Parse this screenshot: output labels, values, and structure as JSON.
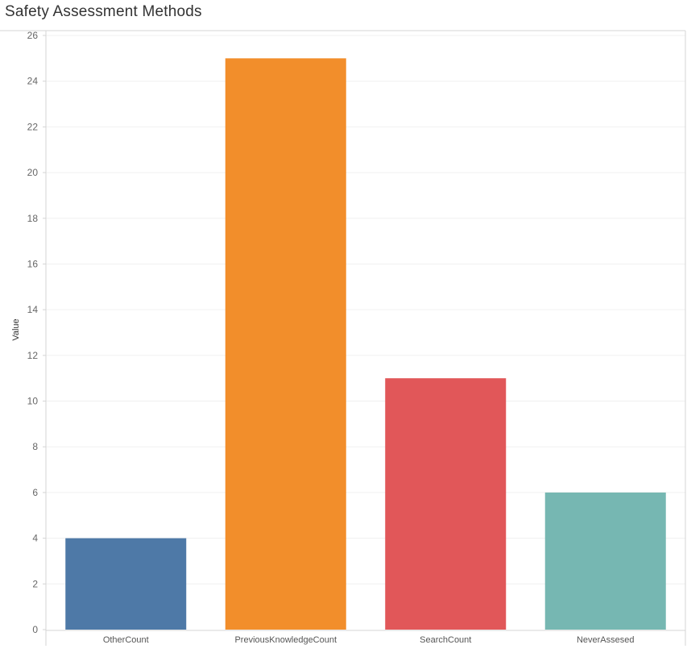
{
  "chart_data": {
    "type": "bar",
    "title": "Safety Assessment Methods",
    "ylabel": "Value",
    "xlabel": "",
    "ylim": [
      0,
      26
    ],
    "yticks": [
      0,
      2,
      4,
      6,
      8,
      10,
      12,
      14,
      16,
      18,
      20,
      22,
      24,
      26
    ],
    "grid": true,
    "categories": [
      "OtherCount",
      "PreviousKnowledgeCount",
      "SearchCount",
      "NeverAssesed"
    ],
    "values": [
      4,
      25,
      11,
      6
    ],
    "colors": [
      "#4e79a7",
      "#f28e2b",
      "#e15759",
      "#76b7b2"
    ]
  }
}
